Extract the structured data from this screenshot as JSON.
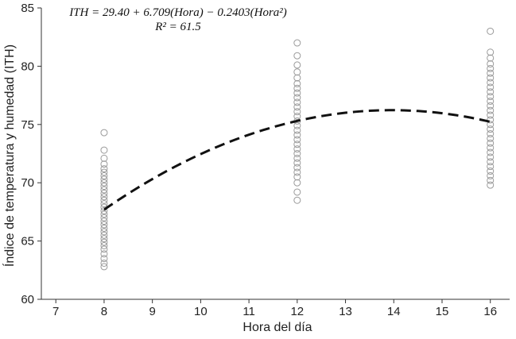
{
  "chart_data": {
    "type": "scatter",
    "title": "",
    "xlabel": "Hora del día",
    "ylabel": "Índice de temperatura y humedad (ITH)",
    "xlim": [
      6.7,
      16.4
    ],
    "ylim": [
      60,
      85
    ],
    "xticks": [
      7,
      8,
      9,
      10,
      11,
      12,
      13,
      14,
      15,
      16
    ],
    "yticks": [
      60,
      65,
      70,
      75,
      80,
      85
    ],
    "grid": false,
    "annotations": [
      "ITH = 29.40 + 6.709(Hora) − 0.2403(Hora²)",
      "R² = 61.5"
    ],
    "regression": {
      "form": "quadratic",
      "intercept": 29.4,
      "linear": 6.709,
      "quadratic": -0.2403,
      "x_range": [
        8,
        16
      ],
      "style": "dashed"
    },
    "series": [
      {
        "x": 8,
        "y": [
          62.8,
          63.1,
          63.5,
          63.9,
          64.3,
          64.6,
          64.9,
          65.2,
          65.5,
          65.8,
          66.1,
          66.4,
          66.7,
          67.0,
          67.3,
          67.6,
          67.9,
          68.2,
          68.5,
          68.8,
          69.1,
          69.4,
          69.7,
          70.0,
          70.3,
          70.6,
          70.9,
          71.2,
          71.6,
          72.1,
          72.8,
          74.3
        ]
      },
      {
        "x": 12,
        "y": [
          68.5,
          69.2,
          70.0,
          70.5,
          70.9,
          71.3,
          71.7,
          72.1,
          72.5,
          72.9,
          73.3,
          73.7,
          74.1,
          74.5,
          74.9,
          75.3,
          75.7,
          76.1,
          76.5,
          76.9,
          77.3,
          77.7,
          78.1,
          78.5,
          79.0,
          79.5,
          80.1,
          80.9,
          82.0
        ]
      },
      {
        "x": 16,
        "y": [
          69.8,
          70.2,
          70.6,
          71.0,
          71.4,
          71.8,
          72.2,
          72.6,
          73.0,
          73.4,
          73.8,
          74.2,
          74.6,
          75.0,
          75.4,
          75.8,
          76.2,
          76.6,
          77.0,
          77.4,
          77.8,
          78.2,
          78.6,
          79.0,
          79.4,
          79.8,
          80.2,
          80.7,
          81.2,
          83.0
        ]
      }
    ]
  }
}
